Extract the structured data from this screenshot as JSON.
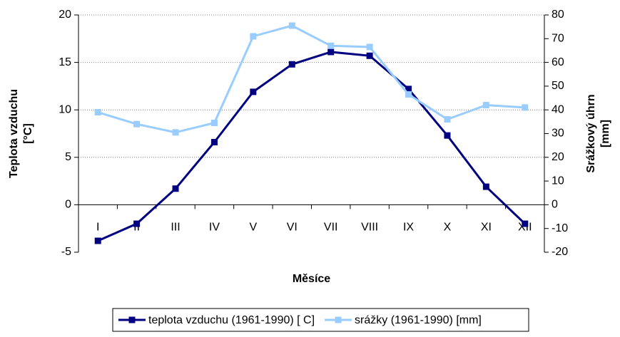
{
  "chart_data": {
    "type": "line",
    "categories": [
      "I",
      "II",
      "III",
      "IV",
      "V",
      "VI",
      "VII",
      "VIII",
      "IX",
      "X",
      "XI",
      "XII"
    ],
    "x_label": "Měsíce",
    "y_label": [
      "Teplota vzduchu",
      "[°C]"
    ],
    "y2_label": [
      "Srážkový úhrn",
      "[mm]"
    ],
    "ylim": [
      -5,
      20
    ],
    "yticks": [
      -5,
      0,
      5,
      10,
      15,
      20
    ],
    "y2lim": [
      -20,
      80
    ],
    "y2ticks": [
      -20,
      -10,
      0,
      10,
      20,
      30,
      40,
      50,
      60,
      70,
      80
    ],
    "grid": true,
    "legend": "bottom",
    "series": [
      {
        "name": "teplota vzduchu (1961-1990) [ C]",
        "color": "#000080",
        "values": [
          -3.8,
          -2.0,
          1.7,
          6.6,
          11.9,
          14.8,
          16.1,
          15.7,
          12.2,
          7.3,
          1.9,
          -2.0
        ]
      },
      {
        "name": "srážky (1961-1990) [mm]",
        "color": "#99ccff",
        "axis": "y2",
        "values": [
          39,
          34,
          30.5,
          34.5,
          71,
          75.5,
          67,
          66.5,
          46.5,
          36,
          42,
          41
        ]
      }
    ]
  }
}
